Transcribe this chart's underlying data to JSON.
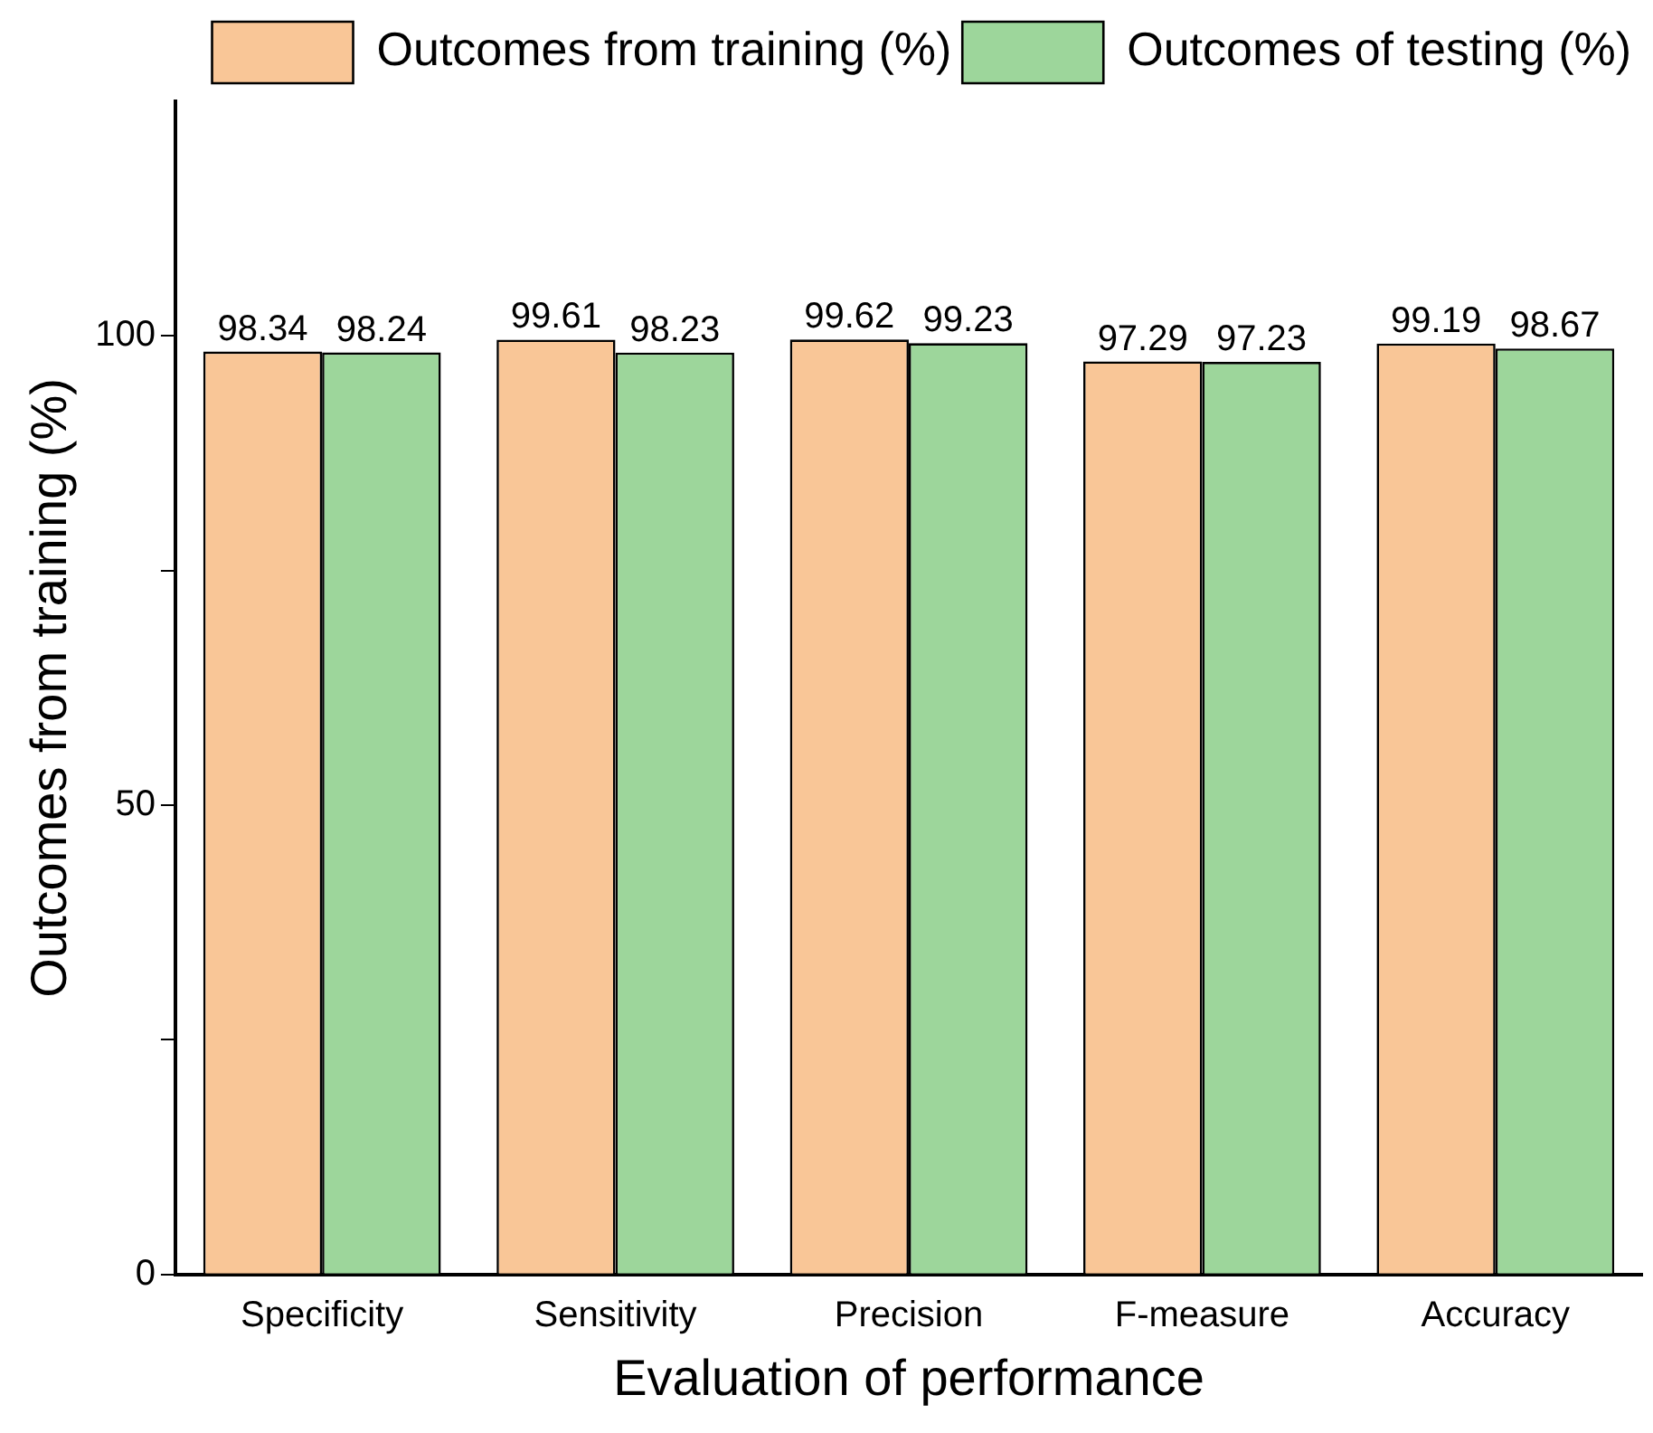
{
  "chart_data": {
    "type": "bar",
    "xlabel": "Evaluation of performance",
    "ylabel": "Outcomes from training (%)",
    "categories": [
      "Specificity",
      "Sensitivity",
      "Precision",
      "F-measure",
      "Accuracy"
    ],
    "series": [
      {
        "name": "Outcomes from training (%)",
        "color": "#f9c697",
        "values": [
          98.34,
          99.61,
          99.62,
          97.29,
          99.19
        ]
      },
      {
        "name": "Outcomes of testing (%)",
        "color": "#9dd69b",
        "values": [
          98.24,
          98.23,
          99.23,
          97.23,
          98.67
        ]
      }
    ],
    "ylim": [
      0,
      125
    ],
    "yticks": [
      0,
      {
        "value": 25,
        "label": null
      },
      50,
      {
        "value": 75,
        "label": null
      },
      100
    ],
    "grid": false,
    "legend": "top right",
    "data_labels": true
  }
}
